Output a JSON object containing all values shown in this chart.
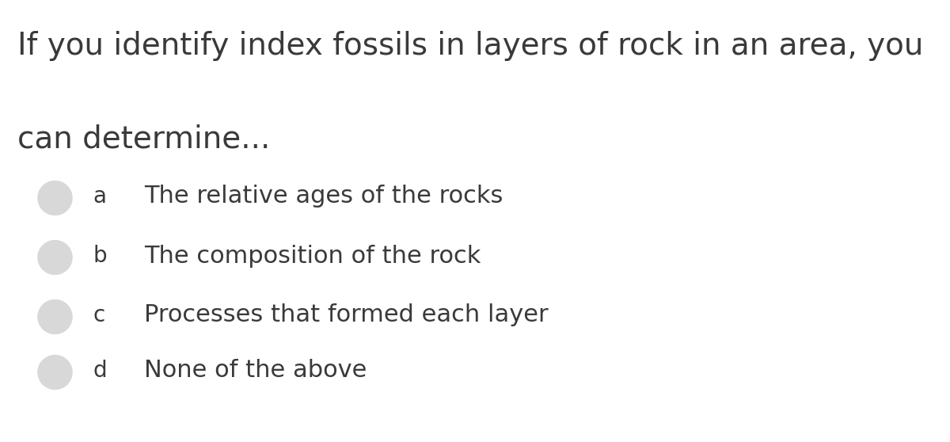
{
  "title_line1": "If you identify index fossils in layers of rock in an area, you",
  "title_line2": "can determine...",
  "options": [
    {
      "letter": "a",
      "text": "The relative ages of the rocks"
    },
    {
      "letter": "b",
      "text": "The composition of the rock"
    },
    {
      "letter": "c",
      "text": "Processes that formed each layer"
    },
    {
      "letter": "d",
      "text": "None of the above"
    }
  ],
  "background_color": "#ffffff",
  "text_color": "#3a3a3a",
  "circle_fill_color": "#d8d8d8",
  "circle_edge_color": "#cccccc",
  "title_fontsize": 28,
  "option_fontsize": 22,
  "letter_fontsize": 20
}
